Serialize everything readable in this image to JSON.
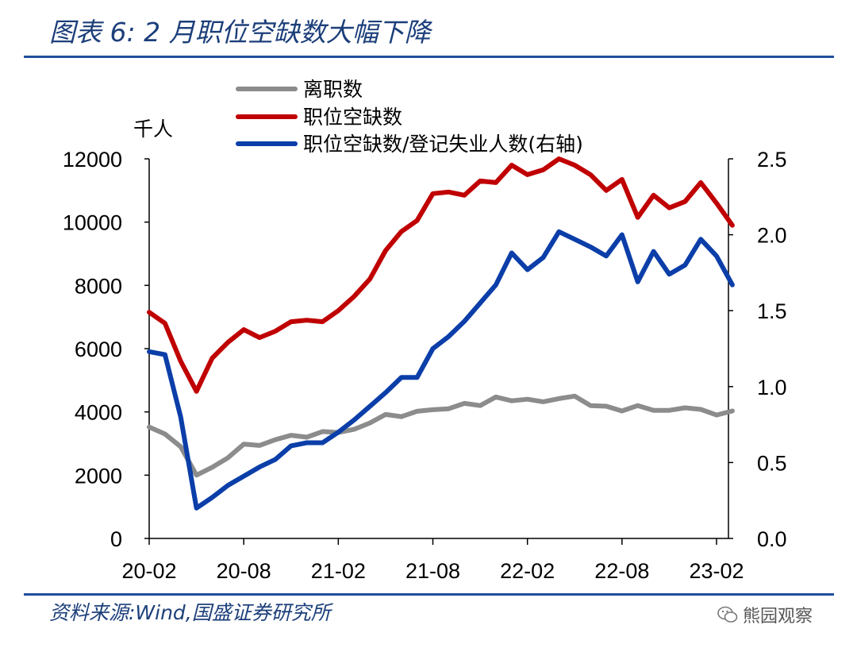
{
  "header": {
    "title": "图表 6:  2 月职位空缺数大幅下降"
  },
  "footer": {
    "source": "资料来源:Wind,国盛证券研究所",
    "watermark": "熊园观察"
  },
  "colors": {
    "accent": "#1f4e9c",
    "gray": "#8c8c8c",
    "red": "#c00000",
    "blue": "#0b3ea8"
  },
  "chart_data": {
    "type": "line",
    "left_unit": "千人",
    "y_left": {
      "min": 0,
      "max": 12000,
      "ticks": [
        0,
        2000,
        4000,
        6000,
        8000,
        10000,
        12000
      ]
    },
    "y_right": {
      "min": 0,
      "max": 2.5,
      "ticks": [
        "0.0",
        "0.5",
        "1.0",
        "1.5",
        "2.0",
        "2.5"
      ]
    },
    "x_ticks": [
      "20-02",
      "20-08",
      "21-02",
      "21-08",
      "22-02",
      "22-08",
      "23-02"
    ],
    "x_start": "2020-02",
    "x_end": "2023-02",
    "grid": false,
    "legend_position": "top",
    "series": [
      {
        "name": "离职数",
        "axis": "left",
        "color": "#8c8c8c",
        "values": [
          3520,
          3300,
          2900,
          2000,
          2250,
          2550,
          2980,
          2940,
          3120,
          3260,
          3200,
          3380,
          3350,
          3450,
          3650,
          3920,
          3850,
          4020,
          4070,
          4100,
          4270,
          4200,
          4470,
          4350,
          4400,
          4320,
          4420,
          4500,
          4200,
          4180,
          4030,
          4200,
          4050,
          4050,
          4130,
          4080,
          3900,
          4030
        ]
      },
      {
        "name": "职位空缺数",
        "axis": "left",
        "color": "#c00000",
        "values": [
          7150,
          6800,
          5600,
          4650,
          5700,
          6200,
          6600,
          6350,
          6550,
          6850,
          6900,
          6850,
          7200,
          7650,
          8200,
          9100,
          9700,
          10050,
          10900,
          10950,
          10850,
          11300,
          11250,
          11800,
          11500,
          11650,
          12000,
          11800,
          11500,
          11000,
          11350,
          10150,
          10850,
          10450,
          10650,
          11250,
          10600,
          9900
        ]
      },
      {
        "name": "职位空缺数/登记失业人数(右轴)",
        "axis": "right",
        "color": "#0b3ea8",
        "values": [
          1.23,
          1.21,
          0.8,
          0.2,
          0.27,
          0.35,
          0.41,
          0.47,
          0.52,
          0.61,
          0.63,
          0.63,
          0.7,
          0.78,
          0.87,
          0.96,
          1.06,
          1.06,
          1.25,
          1.33,
          1.43,
          1.55,
          1.67,
          1.88,
          1.77,
          1.85,
          2.02,
          1.97,
          1.92,
          1.86,
          2.0,
          1.69,
          1.89,
          1.74,
          1.8,
          1.97,
          1.86,
          1.67
        ]
      }
    ]
  }
}
